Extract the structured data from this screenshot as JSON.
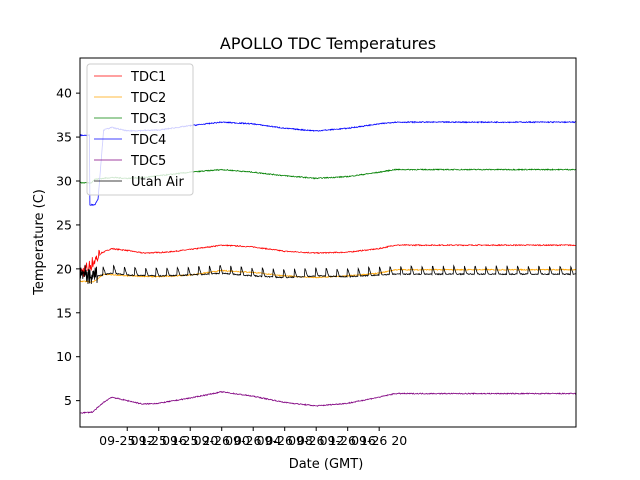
{
  "chart_data": {
    "type": "line",
    "title": "APOLLO TDC Temperatures",
    "xlabel": "Date (GMT)",
    "ylabel": "Temperature (C)",
    "xlim_hours": [
      -18,
      45
    ],
    "ylim": [
      2,
      44
    ],
    "x_tick_hours": [
      -12,
      -8,
      -4,
      0,
      4,
      8,
      12,
      16,
      20
    ],
    "x_tick_labels": [
      "09-25 12",
      "09-25 16",
      "09-25 20",
      "09-26 00",
      "09-26 04",
      "09-26 08",
      "09-26 12",
      "09-26 16",
      "09-26 20"
    ],
    "y_ticks": [
      5,
      10,
      15,
      20,
      25,
      30,
      35,
      40
    ],
    "legend_position": "upper-left",
    "grid": false,
    "series": [
      {
        "name": "TDC1",
        "color": "#ff0000",
        "x": [
          -18,
          -16.8,
          -15.3,
          -14,
          -12,
          -10,
          -7,
          -4,
          0,
          4,
          8,
          12,
          16,
          20,
          22
        ],
        "y": [
          19.5,
          20.3,
          21.8,
          22.3,
          22.1,
          21.8,
          21.9,
          22.2,
          22.7,
          22.5,
          22.0,
          21.8,
          21.9,
          22.3,
          22.7
        ]
      },
      {
        "name": "TDC2",
        "color": "#ffa500",
        "x": [
          -18,
          -16.3,
          -15,
          -12,
          -8,
          -4,
          0,
          4,
          8,
          12,
          16,
          20,
          22
        ],
        "y": [
          18.6,
          18.5,
          19.4,
          19.2,
          19.1,
          19.3,
          19.8,
          19.6,
          19.2,
          19.0,
          19.2,
          19.5,
          19.9
        ]
      },
      {
        "name": "TDC3",
        "color": "#008000",
        "x": [
          -18,
          -16.6,
          -16.1,
          -14,
          -12,
          -10,
          -8,
          -4,
          0,
          4,
          8,
          12,
          16,
          20,
          22
        ],
        "y": [
          29.8,
          29.8,
          30.2,
          30.4,
          30.3,
          30.4,
          30.6,
          31.0,
          31.3,
          31.0,
          30.6,
          30.3,
          30.5,
          31.0,
          31.3
        ]
      },
      {
        "name": "TDC4",
        "color": "#0000ff",
        "x": [
          -18,
          -16.8,
          -16.8,
          -16.1,
          -15.7,
          -15.0,
          -14,
          -12,
          -8,
          -4,
          0,
          4,
          8,
          12,
          16,
          20,
          22
        ],
        "y": [
          35.2,
          35.2,
          27.3,
          27.3,
          28.0,
          35.8,
          36.1,
          35.7,
          35.8,
          36.3,
          36.7,
          36.5,
          36.0,
          35.7,
          36.0,
          36.5,
          36.7
        ]
      },
      {
        "name": "TDC5",
        "color": "#800080",
        "x": [
          -18,
          -16.4,
          -15,
          -14,
          -12,
          -10,
          -8,
          -4,
          0,
          4,
          8,
          12,
          16,
          20,
          22
        ],
        "y": [
          3.6,
          3.7,
          4.8,
          5.4,
          5.0,
          4.6,
          4.7,
          5.3,
          6.0,
          5.5,
          4.8,
          4.4,
          4.7,
          5.4,
          5.8
        ]
      },
      {
        "name": "Utah Air",
        "color": "#000000",
        "x": [
          -18,
          -16.5,
          -15.8,
          -14,
          -12,
          -8,
          -4,
          0,
          4,
          8,
          12,
          16,
          20,
          22
        ],
        "y": [
          19.8,
          19.0,
          19.2,
          19.5,
          19.3,
          19.2,
          19.3,
          19.5,
          19.2,
          19.0,
          19.2,
          19.1,
          19.3,
          19.4
        ]
      }
    ]
  }
}
